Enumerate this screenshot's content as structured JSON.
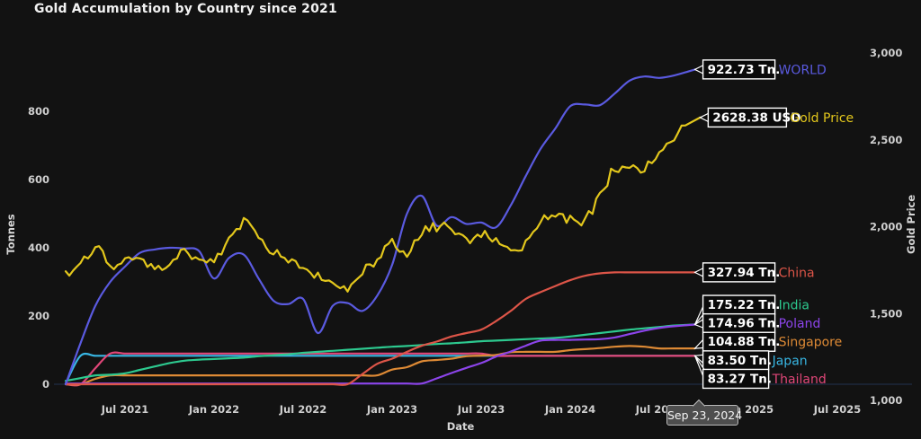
{
  "title": "Gold Accumulation by Country since 2021",
  "tooltip": {
    "date": "Sep 23, 2024"
  },
  "colors": {
    "background": "#121212",
    "tick_text": "#cfcfcf",
    "zero_line": "#233350",
    "tag_box_bg": "#0a0a0a",
    "tag_box_border": "#ffffff",
    "tag_text": "#ffffff"
  },
  "chart_data": {
    "type": "line",
    "title": "Gold Accumulation by Country since 2021",
    "frequency": "monthly",
    "start_month": "2021-03",
    "end_marker_date": "Sep 23, 2024",
    "x_axis": {
      "title": "Date",
      "tick_labels": [
        "Jul 2021",
        "Jan 2022",
        "Jul 2022",
        "Jan 2023",
        "Jul 2023",
        "Jan 2024",
        "Jul 2024",
        "Jan 2025",
        "Jul 2025"
      ],
      "tick_month_index": [
        4,
        10,
        16,
        22,
        28,
        34,
        40,
        46,
        52
      ]
    },
    "y_left": {
      "title": "Tonnes",
      "tick_labels": [
        "0",
        "200",
        "400",
        "600",
        "800"
      ],
      "tick_values": [
        0,
        200,
        400,
        600,
        800
      ],
      "range": [
        0,
        1000
      ]
    },
    "y_right": {
      "title": "Gold Price",
      "tick_labels": [
        "1,000",
        "1,500",
        "2,000",
        "2,500",
        "3,000"
      ],
      "tick_values": [
        1000,
        1500,
        2000,
        2500,
        3000
      ],
      "range": [
        1000,
        3000
      ]
    },
    "legend_position": "end-of-line-tags",
    "grid": false,
    "series": [
      {
        "name": "Japan",
        "axis": "left",
        "color": "#38b6e3",
        "unit": "Tn.",
        "end_value": 83.5,
        "end_label": "83.50 Tn.",
        "values": [
          2,
          83.5,
          83.5,
          83.5,
          83.5,
          83.5,
          83.5,
          83.5,
          83.5,
          83.5,
          83.5,
          83.5,
          83.5,
          83.5,
          83.5,
          83.5,
          83.5,
          83.5,
          83.5,
          83.5,
          83.5,
          83.5,
          83.5,
          83.5,
          83.5,
          83.5,
          83.5,
          83.5,
          83.5,
          83.5,
          83.5,
          83.5,
          83.5,
          83.5,
          83.5,
          83.5,
          83.5,
          83.5,
          83.5,
          83.5,
          83.5,
          83.5,
          83.5
        ]
      },
      {
        "name": "Thailand",
        "axis": "left",
        "color": "#e04678",
        "unit": "Tn.",
        "end_value": 83.27,
        "end_label": "83.27 Tn.",
        "values": [
          0,
          0,
          47,
          90,
          90,
          90,
          90,
          90,
          90,
          90,
          90,
          90,
          90,
          90,
          90,
          90,
          90,
          90,
          90,
          90,
          90,
          90,
          90,
          90,
          90,
          90,
          90,
          90,
          90,
          83.27,
          83.27,
          83.27,
          83.27,
          83.27,
          83.27,
          83.27,
          83.27,
          83.27,
          83.27,
          83.27,
          83.27,
          83.27,
          83.27
        ]
      },
      {
        "name": "Singapore",
        "axis": "left",
        "color": "#de8a35",
        "unit": "Tn.",
        "end_value": 104.88,
        "end_label": "104.88 Tn.",
        "values": [
          0,
          0,
          16,
          26,
          26,
          26,
          26,
          26,
          26,
          26,
          26,
          26,
          26,
          26,
          26,
          26,
          26,
          26,
          26,
          26,
          26,
          26,
          43,
          50,
          67,
          71,
          75,
          82,
          84,
          86,
          94,
          95,
          95,
          95,
          100,
          103,
          106,
          110,
          112,
          110,
          105,
          104.88,
          104.88
        ]
      },
      {
        "name": "India",
        "axis": "left",
        "color": "#2dc98f",
        "unit": "Tn.",
        "end_value": 175.22,
        "end_label": "175.22 Tn.",
        "values": [
          10,
          18,
          26,
          28,
          32,
          42,
          52,
          62,
          69,
          72,
          74,
          76,
          78,
          82,
          85,
          88,
          92,
          95,
          98,
          101,
          104,
          107,
          110,
          112,
          115,
          118,
          120,
          123,
          126,
          128,
          130,
          132,
          134,
          136,
          140,
          145,
          150,
          155,
          160,
          164,
          168,
          172,
          175.22
        ]
      },
      {
        "name": "Poland",
        "axis": "left",
        "color": "#8c44ea",
        "unit": "Tn.",
        "end_value": 174.96,
        "end_label": "174.96 Tn.",
        "values": [
          2,
          2,
          2,
          2,
          2,
          2,
          2,
          2,
          2,
          2,
          2,
          2,
          2,
          2,
          2,
          2,
          2,
          2,
          2,
          2,
          2,
          2,
          2,
          2,
          2,
          17,
          33,
          48,
          62,
          81,
          96,
          113,
          128,
          130,
          130,
          131,
          132,
          137,
          147,
          157,
          165,
          170,
          174.96
        ]
      },
      {
        "name": "China",
        "axis": "left",
        "color": "#dd5548",
        "unit": "Tn.",
        "end_value": 327.94,
        "end_label": "327.94 Tn.",
        "values": [
          0,
          0,
          0,
          0,
          0,
          0,
          0,
          0,
          0,
          0,
          0,
          0,
          0,
          0,
          0,
          0,
          0,
          0,
          0,
          0,
          30,
          60,
          75,
          95,
          113,
          125,
          140,
          150,
          160,
          185,
          215,
          250,
          270,
          288,
          305,
          318,
          325,
          327.94,
          327.94,
          327.94,
          327.94,
          327.94,
          327.94
        ]
      },
      {
        "name": "WORLD",
        "axis": "left",
        "color": "#5a5ae0",
        "unit": "Tn.",
        "end_value": 922.73,
        "end_label": "922.73 Tn.",
        "values": [
          0,
          120,
          230,
          300,
          345,
          385,
          395,
          400,
          398,
          390,
          310,
          370,
          380,
          310,
          245,
          235,
          250,
          150,
          230,
          238,
          215,
          260,
          350,
          500,
          552,
          465,
          490,
          470,
          474,
          460,
          525,
          610,
          690,
          750,
          815,
          820,
          818,
          852,
          890,
          902,
          898,
          905,
          922.73
        ]
      },
      {
        "name": "Gold Price",
        "axis": "right",
        "color": "#e3c71c",
        "unit": "USD",
        "end_value": 2628.38,
        "end_label": "2628.38 USD",
        "jitter": true,
        "values": [
          1730,
          1775,
          1900,
          1770,
          1815,
          1812,
          1755,
          1785,
          1865,
          1805,
          1795,
          1910,
          2045,
          1935,
          1850,
          1815,
          1765,
          1715,
          1660,
          1640,
          1750,
          1815,
          1925,
          1835,
          1975,
          1995,
          2010,
          1920,
          1955,
          1920,
          1870,
          1905,
          2035,
          2060,
          2035,
          2040,
          2180,
          2340,
          2345,
          2325,
          2420,
          2505,
          2628.38
        ]
      }
    ]
  }
}
